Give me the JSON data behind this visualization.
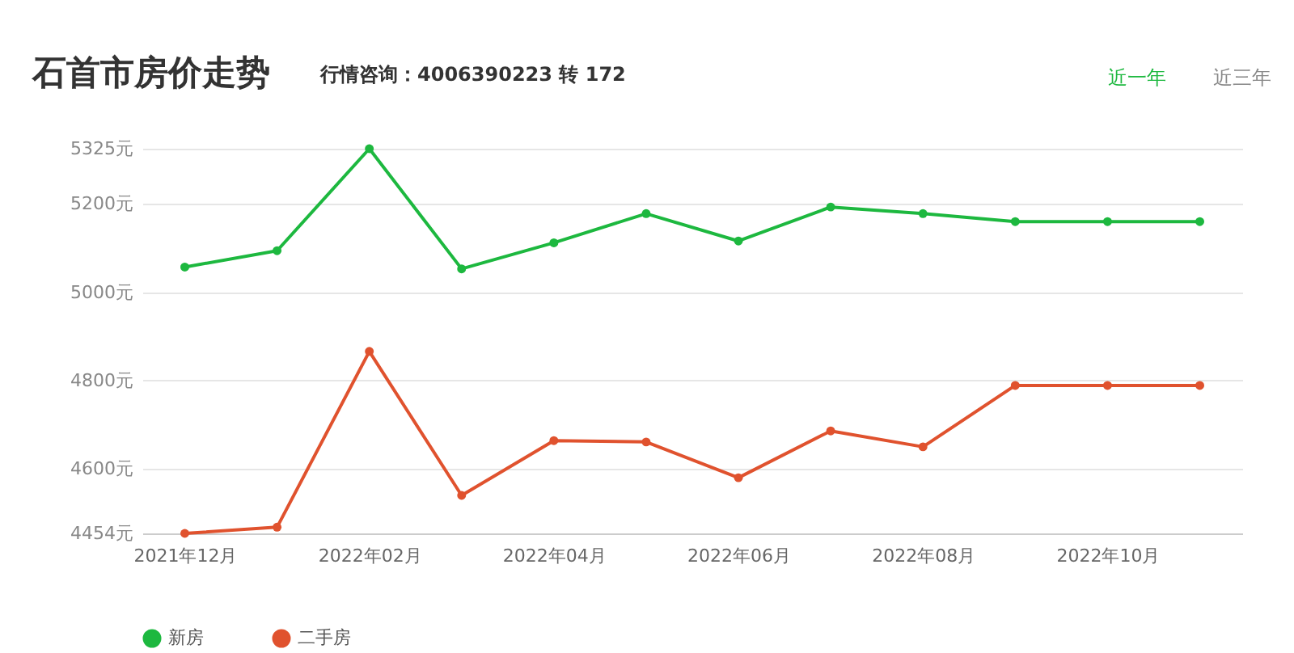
{
  "chart_data": {
    "type": "line",
    "title": "石首市房价走势",
    "subtitle": "行情咨询：4006390223 转 172",
    "annotations": [
      "近一年",
      "近三年"
    ],
    "categories": [
      "2021年12月",
      null,
      "2022年02月",
      null,
      "2022年04月",
      null,
      "2022年06月",
      null,
      "2022年08月",
      null,
      "2022年10月",
      null
    ],
    "series": [
      {
        "name": "新房",
        "color": "#1db83f",
        "values": [
          5057,
          5094,
          5325,
          5053,
          5112,
          5178,
          5116,
          5193,
          5178,
          5160,
          5160,
          5160
        ]
      },
      {
        "name": "二手房",
        "color": "#e0522e",
        "values": [
          4454,
          4468,
          4866,
          4540,
          4664,
          4661,
          4580,
          4686,
          4650,
          4789,
          4789,
          4789
        ]
      }
    ],
    "ylim": [
      4454,
      5325
    ],
    "yticks": [
      {
        "value": 4454,
        "label": "4454元"
      },
      {
        "value": 4600,
        "label": "4600元"
      },
      {
        "value": 4800,
        "label": "4800元"
      },
      {
        "value": 5000,
        "label": "5000元"
      },
      {
        "value": 5200,
        "label": "5200元"
      },
      {
        "value": 5325,
        "label": "5325元"
      }
    ],
    "grid": "y",
    "legend": "bottom",
    "marker": "circle",
    "line_style": "solid"
  }
}
